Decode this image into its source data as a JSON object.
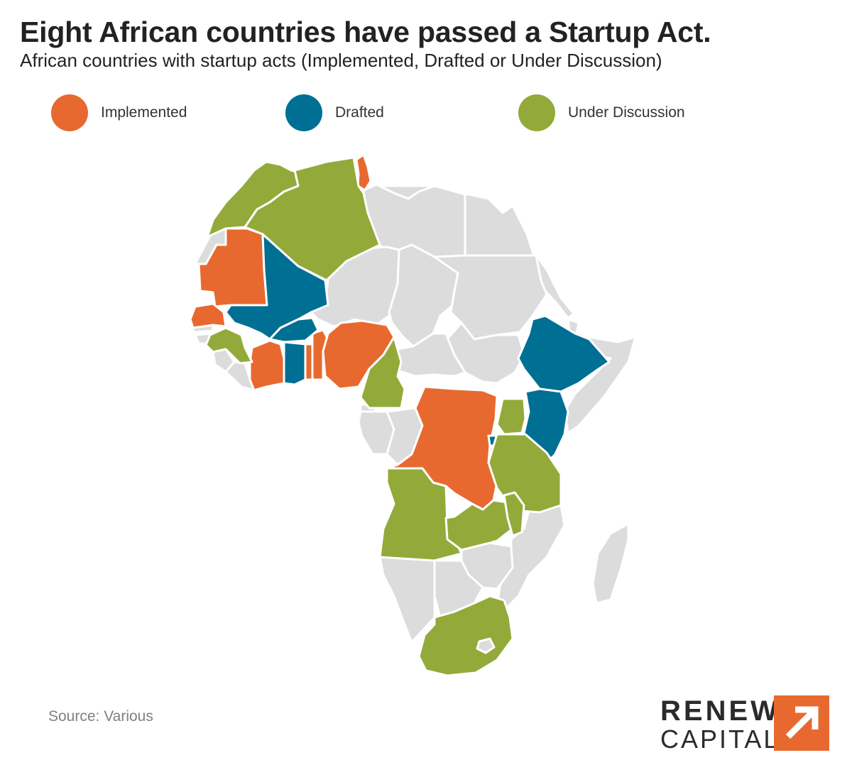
{
  "title": "Eight African countries have passed a Startup Act.",
  "subtitle": "African countries with startup acts (Implemented, Drafted or Under Discussion)",
  "legend": [
    {
      "label": "Implemented",
      "color": "#e8692f"
    },
    {
      "label": "Drafted",
      "color": "#006f94"
    },
    {
      "label": "Under Discussion",
      "color": "#93aa3a"
    }
  ],
  "colors": {
    "none": "#dcdcdc",
    "border": "#ffffff",
    "brand_orange": "#e8692f"
  },
  "map": {
    "implemented": [
      "Tunisia",
      "Mauritania",
      "Senegal",
      "Côte d'Ivoire",
      "Togo",
      "Benin",
      "Nigeria",
      "DR Congo"
    ],
    "drafted": [
      "Mali",
      "Burkina Faso",
      "Ghana",
      "Ethiopia",
      "Kenya",
      "Rwanda"
    ],
    "under_discussion": [
      "Morocco",
      "Algeria",
      "Guinea",
      "Cameroon",
      "Uganda",
      "Tanzania",
      "Angola",
      "Zambia",
      "Malawi",
      "South Africa"
    ]
  },
  "source": "Source: Various",
  "logo": {
    "line1": "RENEW",
    "line2": "CAPITAL",
    "icon": "arrow-up-right-icon"
  }
}
